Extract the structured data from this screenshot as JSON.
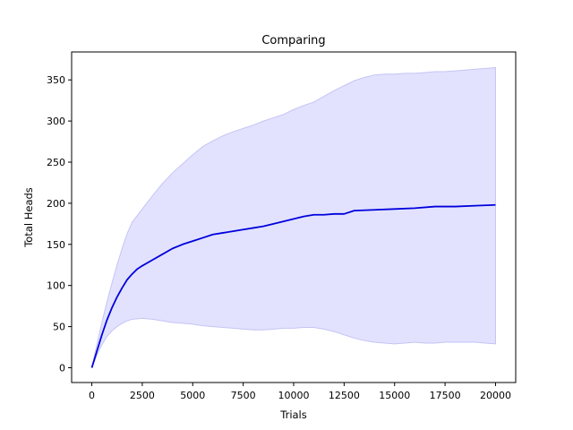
{
  "chart_data": {
    "type": "line",
    "title": "Comparing",
    "xlabel": "Trials",
    "ylabel": "Total Heads",
    "xlim": [
      -1000,
      21000
    ],
    "ylim": [
      -18,
      384
    ],
    "xticks": [
      0,
      2500,
      5000,
      7500,
      10000,
      12500,
      15000,
      17500,
      20000
    ],
    "yticks": [
      0,
      50,
      100,
      150,
      200,
      250,
      300,
      350
    ],
    "grid": false,
    "legend": "none",
    "colors": {
      "mean_line": "#0000dd",
      "band_fill": "#e2e2ff",
      "band_edge": "#c4c4f4"
    },
    "series": [
      {
        "kind": "mean",
        "x": [
          0,
          250,
          500,
          750,
          1000,
          1250,
          1500,
          1750,
          2000,
          2250,
          2500,
          3000,
          3500,
          4000,
          4500,
          5000,
          5500,
          6000,
          6500,
          7000,
          7500,
          8000,
          8500,
          9000,
          9500,
          10000,
          10500,
          11000,
          11500,
          12000,
          12500,
          13000,
          14000,
          15000,
          16000,
          17000,
          18000,
          19000,
          20000
        ],
        "y": [
          0,
          20,
          40,
          58,
          73,
          86,
          97,
          107,
          114,
          120,
          124,
          131,
          138,
          145,
          150,
          154,
          158,
          162,
          164,
          166,
          168,
          170,
          172,
          175,
          178,
          181,
          184,
          186,
          186,
          187,
          187,
          191,
          192,
          193,
          194,
          196,
          196,
          197,
          198
        ]
      },
      {
        "kind": "band",
        "x": [
          0,
          250,
          500,
          750,
          1000,
          1250,
          1500,
          1750,
          2000,
          2500,
          3000,
          3500,
          4000,
          4500,
          5000,
          5500,
          6000,
          6500,
          7000,
          7500,
          8000,
          8500,
          9000,
          9500,
          10000,
          10500,
          11000,
          11500,
          12000,
          12500,
          13000,
          13500,
          14000,
          14500,
          15000,
          15500,
          16000,
          16500,
          17000,
          17500,
          18000,
          18500,
          19000,
          19500,
          20000
        ],
        "lower": [
          0,
          15,
          28,
          38,
          45,
          50,
          54,
          57,
          59,
          60,
          59,
          57,
          55,
          54,
          53,
          51,
          50,
          49,
          48,
          47,
          46,
          46,
          47,
          48,
          48,
          49,
          49,
          47,
          44,
          40,
          36,
          33,
          31,
          30,
          29,
          30,
          31,
          30,
          30,
          31,
          31,
          31,
          31,
          30,
          29
        ],
        "upper": [
          0,
          28,
          55,
          80,
          103,
          125,
          145,
          163,
          177,
          193,
          209,
          224,
          237,
          248,
          259,
          269,
          276,
          282,
          287,
          291,
          295,
          300,
          304,
          308,
          314,
          319,
          323,
          330,
          337,
          343,
          349,
          353,
          356,
          357,
          357,
          358,
          358,
          359,
          360,
          360,
          361,
          362,
          363,
          364,
          365
        ]
      }
    ]
  }
}
